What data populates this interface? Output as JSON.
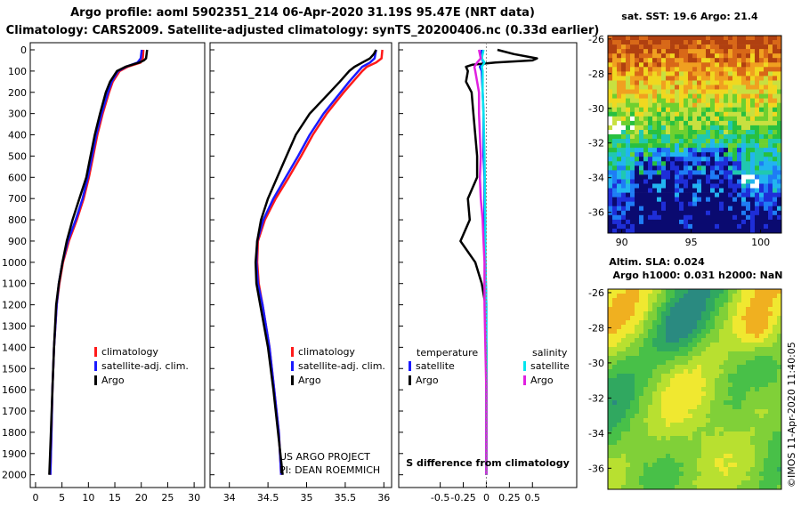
{
  "header": {
    "line1": "Argo profile: aoml 5902351_214 06-Apr-2020 31.19S 95.47E (NRT data)",
    "line2": "Climatology: CARS2009. Satellite-adjusted climatology: synTS_20200406.nc (0.33d earlier)"
  },
  "colors": {
    "clim": "#ff1a1a",
    "sat": "#1a1aff",
    "argo": "#000000",
    "cyan": "#00e5ee",
    "magenta": "#e020e0"
  },
  "credit": {
    "line1": "US ARGO PROJECT",
    "line2": "PI: DEAN ROEMMICH"
  },
  "watermark": "©IMOS 11-Apr-2020 11:40:05",
  "chart_data": [
    {
      "type": "line",
      "title": "Temperature profile",
      "xlim": [
        -1,
        32
      ],
      "ylim": [
        2060,
        0
      ],
      "xticks": [
        0,
        5,
        10,
        15,
        20,
        25,
        30
      ],
      "yticks": [
        0,
        100,
        200,
        300,
        400,
        500,
        600,
        700,
        800,
        900,
        1000,
        1100,
        1200,
        1300,
        1400,
        1500,
        1600,
        1700,
        1800,
        1900,
        2000
      ],
      "legend": [
        "climatology",
        "satellite-adj. clim.",
        "Argo"
      ],
      "series": [
        {
          "name": "climatology",
          "color": "clim",
          "depth": [
            0,
            40,
            60,
            80,
            100,
            150,
            200,
            300,
            400,
            500,
            600,
            700,
            800,
            900,
            1000,
            1100,
            1200,
            1400,
            1600,
            1800,
            2000
          ],
          "values": [
            20.4,
            20.3,
            19.9,
            17.4,
            15.9,
            14.6,
            13.9,
            12.7,
            11.7,
            10.9,
            10.1,
            9.1,
            7.8,
            6.3,
            5.2,
            4.5,
            4.0,
            3.5,
            3.2,
            3.0,
            2.8
          ]
        },
        {
          "name": "satellite-adj. clim.",
          "color": "sat",
          "depth": [
            0,
            40,
            60,
            80,
            100,
            150,
            200,
            300,
            400,
            500,
            600,
            700,
            800,
            900,
            1000,
            1100,
            1200,
            1400,
            1600,
            1800,
            2000
          ],
          "values": [
            20.1,
            19.9,
            19.3,
            17.1,
            15.6,
            14.4,
            13.7,
            12.5,
            11.5,
            10.7,
            9.9,
            8.9,
            7.6,
            6.1,
            5.1,
            4.4,
            4.0,
            3.5,
            3.2,
            3.0,
            2.8
          ]
        },
        {
          "name": "Argo",
          "color": "argo",
          "depth": [
            0,
            20,
            40,
            50,
            60,
            80,
            100,
            150,
            200,
            300,
            400,
            500,
            600,
            700,
            800,
            900,
            1000,
            1100,
            1200,
            1400,
            1600,
            1800,
            2000
          ],
          "values": [
            21.1,
            21.0,
            20.9,
            20.5,
            19.6,
            17.0,
            15.4,
            14.1,
            13.3,
            12.2,
            11.2,
            10.4,
            9.6,
            8.3,
            7.0,
            5.9,
            5.1,
            4.4,
            3.9,
            3.5,
            3.2,
            2.9,
            2.6
          ]
        }
      ]
    },
    {
      "type": "line",
      "title": "Salinity profile",
      "xlim": [
        33.75,
        36.1
      ],
      "ylim": [
        2060,
        0
      ],
      "xticks": [
        34,
        34.5,
        35,
        35.5,
        36
      ],
      "xtick_labels": [
        "34",
        "34.5",
        "35",
        "35.5",
        "36"
      ],
      "legend": [
        "climatology",
        "satellite-adj. clim.",
        "Argo"
      ],
      "series": [
        {
          "name": "climatology",
          "color": "clim",
          "depth": [
            0,
            40,
            60,
            80,
            100,
            150,
            200,
            300,
            400,
            500,
            600,
            700,
            800,
            900,
            1000,
            1100,
            1200,
            1400,
            1600,
            1800,
            2000
          ],
          "values": [
            35.98,
            35.97,
            35.9,
            35.78,
            35.72,
            35.6,
            35.48,
            35.26,
            35.08,
            34.93,
            34.77,
            34.6,
            34.46,
            34.37,
            34.36,
            34.38,
            34.43,
            34.52,
            34.58,
            34.64,
            34.67
          ]
        },
        {
          "name": "satellite-adj. clim.",
          "color": "sat",
          "depth": [
            0,
            40,
            60,
            80,
            100,
            150,
            200,
            300,
            400,
            500,
            600,
            700,
            800,
            900,
            1000,
            1100,
            1200,
            1400,
            1600,
            1800,
            2000
          ],
          "values": [
            35.9,
            35.88,
            35.82,
            35.72,
            35.67,
            35.55,
            35.44,
            35.22,
            35.04,
            34.89,
            34.73,
            34.57,
            34.44,
            34.36,
            34.35,
            34.37,
            34.43,
            34.52,
            34.58,
            34.64,
            34.67
          ]
        },
        {
          "name": "Argo",
          "color": "argo",
          "depth": [
            0,
            20,
            40,
            60,
            80,
            100,
            150,
            200,
            300,
            400,
            500,
            600,
            700,
            800,
            900,
            1000,
            1100,
            1200,
            1400,
            1600,
            1800,
            2000
          ],
          "values": [
            35.9,
            35.87,
            35.82,
            35.72,
            35.62,
            35.55,
            35.43,
            35.3,
            35.04,
            34.86,
            34.74,
            34.62,
            34.5,
            34.41,
            34.36,
            34.34,
            34.35,
            34.4,
            34.5,
            34.57,
            34.63,
            34.69
          ]
        }
      ]
    },
    {
      "type": "line",
      "title": "S difference from climatology",
      "xlabel": "S difference from climatology",
      "xlim": [
        -0.95,
        0.98
      ],
      "ylim": [
        2060,
        0
      ],
      "xticks": [
        -0.5,
        -0.25,
        0,
        0.25,
        0.5
      ],
      "xtick_labels": [
        "-0.5",
        "-0.25",
        "0",
        "0.25",
        "0.5"
      ],
      "legend_groups": [
        {
          "heading": "temperature",
          "items": [
            "satellite",
            "Argo"
          ]
        },
        {
          "heading": "salinity",
          "items": [
            "satellite",
            "Argo"
          ]
        }
      ],
      "series": [
        {
          "name": "temperature satellite",
          "color": "sat",
          "depth": [
            0,
            40,
            60,
            80,
            100,
            200,
            300,
            400,
            500,
            600,
            800,
            1000,
            1200,
            1400,
            2000
          ],
          "values": [
            -0.05,
            -0.05,
            -0.03,
            -0.07,
            -0.05,
            -0.04,
            -0.03,
            -0.03,
            -0.03,
            -0.02,
            -0.02,
            -0.01,
            0,
            0,
            0
          ]
        },
        {
          "name": "temperature Argo",
          "color": "argo",
          "depth": [
            0,
            20,
            40,
            50,
            60,
            70,
            80,
            100,
            150,
            200,
            300,
            400,
            500,
            600,
            700,
            800,
            900,
            1000,
            1100,
            1200,
            1400,
            2000
          ],
          "values": [
            0.12,
            0.3,
            0.55,
            0.5,
            0.1,
            -0.15,
            -0.22,
            -0.2,
            -0.22,
            -0.16,
            -0.14,
            -0.12,
            -0.1,
            -0.1,
            -0.2,
            -0.18,
            -0.28,
            -0.12,
            -0.05,
            -0.01,
            0,
            0
          ]
        },
        {
          "name": "salinity satellite",
          "color": "cyan",
          "depth": [
            0,
            40,
            60,
            80,
            100,
            200,
            300,
            500,
            800,
            1000,
            1200,
            1500,
            2000
          ],
          "values": [
            -0.03,
            -0.05,
            -0.02,
            -0.05,
            -0.04,
            -0.04,
            -0.03,
            -0.02,
            -0.01,
            -0.01,
            0,
            0,
            0
          ]
        },
        {
          "name": "salinity Argo",
          "color": "magenta",
          "depth": [
            0,
            40,
            60,
            80,
            100,
            150,
            200,
            300,
            400,
            500,
            600,
            700,
            800,
            900,
            1000,
            1100,
            1200,
            1400,
            1600,
            2000
          ],
          "values": [
            -0.08,
            -0.06,
            -0.1,
            -0.13,
            -0.12,
            -0.1,
            -0.08,
            -0.08,
            -0.07,
            -0.06,
            -0.07,
            -0.06,
            -0.04,
            -0.03,
            -0.02,
            -0.02,
            -0.02,
            -0.01,
            0,
            0
          ]
        }
      ]
    },
    {
      "type": "heatmap",
      "title": "sat. SST: 19.6 Argo: 21.4",
      "x_range": [
        89,
        101.5
      ],
      "y_range": [
        -37.2,
        -25.8
      ],
      "xticks": [
        90,
        95,
        100
      ],
      "yticks": [
        -26,
        -28,
        -30,
        -32,
        -34,
        -36
      ],
      "colorscale": [
        "#0a0a70",
        "#1e2ed8",
        "#1e7cf5",
        "#22b4f0",
        "#20c8b0",
        "#28c040",
        "#6ed030",
        "#c8e040",
        "#f0d820",
        "#f0a020",
        "#d86818",
        "#b04010"
      ]
    },
    {
      "type": "heatmap",
      "title": "Altim. SLA: 0.024",
      "subtitle": "Argo h1000: 0.031 h2000: NaN",
      "x_range": [
        89,
        101.5
      ],
      "y_range": [
        -37.2,
        -25.8
      ],
      "yticks": [
        -26,
        -28,
        -30,
        -32,
        -34,
        -36
      ],
      "colorscale": [
        "#2a8a80",
        "#30a860",
        "#48c048",
        "#80d038",
        "#b8e030",
        "#f0e830",
        "#f0b020",
        "#e07020"
      ]
    }
  ]
}
